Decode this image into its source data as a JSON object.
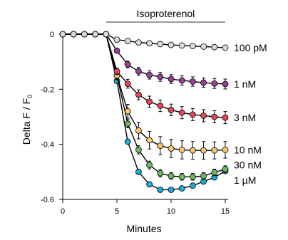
{
  "chart_data": {
    "type": "line",
    "xlabel": "Minutes",
    "ylabel": "Delta F / F",
    "ylabel_sub": "0",
    "xlim": [
      0,
      15
    ],
    "ylim": [
      -0.6,
      0
    ],
    "x_ticks": [
      0,
      5,
      10,
      15
    ],
    "y_ticks": [
      0,
      -0.2,
      -0.4,
      -0.6
    ],
    "x_tick_labels": [
      "0",
      "5",
      "10",
      "15"
    ],
    "y_tick_labels": [
      "0",
      "-0.2",
      "-0.4",
      "-0.6"
    ],
    "annotation": {
      "label": "Isoproterenol",
      "x_start": 4,
      "x_end": 15
    },
    "x": [
      0,
      1,
      2,
      3,
      4,
      5,
      6,
      7,
      8,
      9,
      10,
      11,
      12,
      13,
      14,
      15
    ],
    "series": [
      {
        "name": "100 pM",
        "color": "#d9d9d9",
        "values": [
          0.0,
          0.0,
          0.0,
          0.0,
          0.0,
          -0.02,
          -0.025,
          -0.03,
          -0.033,
          -0.036,
          -0.039,
          -0.041,
          -0.043,
          -0.045,
          -0.047,
          -0.049
        ],
        "errors": [
          0,
          0,
          0,
          0,
          0,
          0,
          0,
          0,
          0,
          0,
          0,
          0,
          0,
          0,
          0,
          0
        ]
      },
      {
        "name": "1 nM",
        "color": "#9b3e97",
        "values": [
          0.0,
          0.0,
          0.0,
          0.0,
          0.0,
          -0.06,
          -0.11,
          -0.135,
          -0.148,
          -0.155,
          -0.163,
          -0.168,
          -0.172,
          -0.176,
          -0.179,
          -0.181
        ],
        "errors": [
          0,
          0,
          0,
          0,
          0,
          0.008,
          0.012,
          0.014,
          0.015,
          0.016,
          0.016,
          0.017,
          0.017,
          0.017,
          0.018,
          0.018
        ]
      },
      {
        "name": "3 nM",
        "color": "#e3465a",
        "values": [
          0.0,
          0.0,
          0.0,
          0.0,
          0.0,
          -0.135,
          -0.18,
          -0.22,
          -0.245,
          -0.26,
          -0.275,
          -0.285,
          -0.292,
          -0.296,
          -0.3,
          -0.303
        ],
        "errors": [
          0,
          0,
          0,
          0,
          0,
          0.012,
          0.016,
          0.018,
          0.02,
          0.021,
          0.021,
          0.022,
          0.022,
          0.022,
          0.022,
          0.022
        ]
      },
      {
        "name": "10 nM",
        "color": "#f7c76b",
        "values": [
          0.0,
          0.0,
          0.0,
          0.0,
          0.0,
          -0.15,
          -0.28,
          -0.35,
          -0.385,
          -0.405,
          -0.415,
          -0.42,
          -0.422,
          -0.422,
          -0.422,
          -0.42
        ],
        "errors": [
          0,
          0,
          0,
          0,
          0,
          0.015,
          0.025,
          0.03,
          0.032,
          0.033,
          0.033,
          0.033,
          0.032,
          0.032,
          0.031,
          0.03
        ]
      },
      {
        "name": "30 nM",
        "color": "#6aba5f",
        "values": [
          0.0,
          0.0,
          0.0,
          0.0,
          0.0,
          -0.15,
          -0.325,
          -0.42,
          -0.475,
          -0.505,
          -0.515,
          -0.518,
          -0.518,
          -0.515,
          -0.502,
          -0.49
        ],
        "errors": [
          0,
          0,
          0,
          0,
          0,
          0.012,
          0.015,
          0.015,
          0.014,
          0.013,
          0.012,
          0.012,
          0.012,
          0.012,
          0.012,
          0.012
        ]
      },
      {
        "name": "1 µM",
        "color": "#1aabd8",
        "values": [
          0.0,
          0.0,
          0.0,
          0.0,
          0.0,
          -0.17,
          -0.39,
          -0.5,
          -0.545,
          -0.565,
          -0.565,
          -0.56,
          -0.55,
          -0.535,
          -0.52,
          -0.497
        ],
        "errors": [
          0,
          0,
          0,
          0,
          0,
          0,
          0,
          0,
          0,
          0,
          0,
          0,
          0,
          0,
          0,
          0
        ]
      }
    ],
    "series_label_y": [
      -0.049,
      -0.181,
      -0.303,
      -0.42,
      -0.475,
      -0.53
    ],
    "grid": false,
    "legend": "inline-right"
  }
}
